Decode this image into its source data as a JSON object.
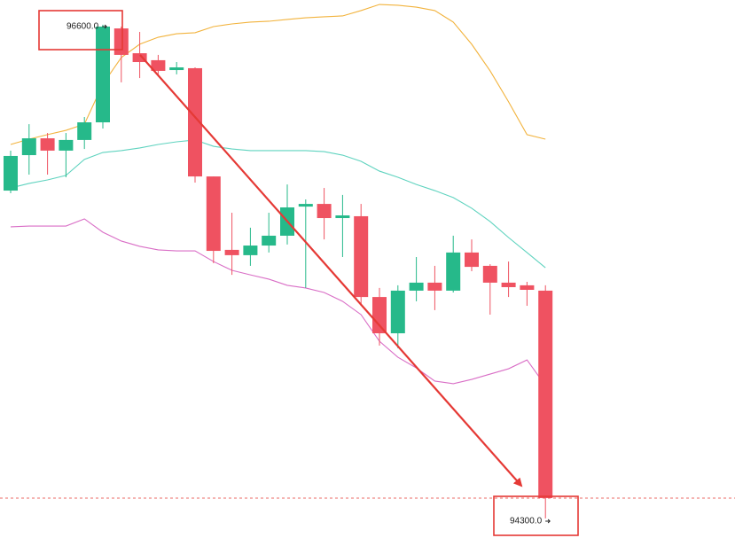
{
  "chart_data": {
    "type": "candlestick",
    "up_color": "#26b98a",
    "down_color": "#ef5261",
    "open": [
      95800,
      95973,
      96055,
      95995,
      96047,
      96133,
      96591,
      96470,
      96436,
      96388,
      96397,
      95869,
      95511,
      95485,
      95532,
      95580,
      95722,
      95735,
      95666,
      95675,
      95281,
      95104,
      95312,
      95351,
      95312,
      95498,
      95433,
      95351,
      95338,
      95312
    ],
    "high": [
      95995,
      96124,
      96081,
      96081,
      96159,
      96609,
      96600,
      96574,
      96462,
      96427,
      96401,
      95869,
      95692,
      95619,
      95692,
      95830,
      95757,
      95813,
      95779,
      95735,
      95325,
      95338,
      95476,
      95433,
      95580,
      95562,
      95441,
      95454,
      95355,
      95338
    ],
    "low": [
      95787,
      95878,
      95878,
      95865,
      96003,
      96103,
      96328,
      96349,
      96367,
      96367,
      95839,
      95446,
      95389,
      95433,
      95498,
      95537,
      95325,
      95562,
      95476,
      95238,
      95044,
      95031,
      95260,
      95217,
      95303,
      95407,
      95195,
      95281,
      95238,
      94201
    ],
    "close": [
      95969,
      96055,
      95995,
      96047,
      96133,
      96600,
      96462,
      96427,
      96384,
      96401,
      95869,
      95506,
      95485,
      95532,
      95580,
      95718,
      95735,
      95666,
      95679,
      95281,
      95104,
      95312,
      95351,
      95312,
      95498,
      95428,
      95351,
      95329,
      95316,
      94300
    ],
    "bands": [
      {
        "color": "#f2b33d",
        "values": [
          96025,
          96051,
          96073,
          96094,
          96124,
          96319,
          96449,
          96514,
          96548,
          96565,
          96570,
          96600,
          96613,
          96622,
          96626,
          96635,
          96643,
          96648,
          96652,
          96678,
          96708,
          96704,
          96695,
          96678,
          96622,
          96514,
          96384,
          96233,
          96073,
          96051
        ]
      },
      {
        "color": "#5fd3bf",
        "values": [
          95813,
          95835,
          95852,
          95874,
          95952,
          95986,
          95995,
          96008,
          96025,
          96038,
          96047,
          96016,
          96003,
          95995,
          95995,
          95995,
          95995,
          95990,
          95973,
          95943,
          95895,
          95865,
          95830,
          95800,
          95766,
          95714,
          95649,
          95571,
          95498,
          95424
        ]
      },
      {
        "color": "#d96ec6",
        "values": [
          95623,
          95627,
          95627,
          95627,
          95662,
          95597,
          95554,
          95528,
          95511,
          95506,
          95506,
          95454,
          95411,
          95389,
          95368,
          95338,
          95325,
          95303,
          95260,
          95195,
          95065,
          94987,
          94935,
          94871,
          94858,
          94879,
          94905,
          94931,
          94974,
          94849
        ]
      }
    ],
    "annotations": [
      {
        "value": 96600,
        "label": "96600.0"
      },
      {
        "value": 94300,
        "label": "94300.0"
      }
    ],
    "annotation_color": "#e53935"
  }
}
